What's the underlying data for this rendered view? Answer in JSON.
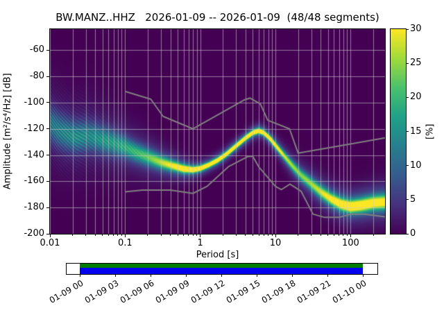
{
  "chart_data": {
    "type": "heatmap",
    "title": "BW.MANZ..HHZ   2026-01-09 -- 2026-01-09  (48/48 segments)",
    "xlabel": "Period [s]",
    "ylabel": "Amplitude [m²/s⁴/Hz] [dB]",
    "colorbar_label": "[%]",
    "x_scale": "log",
    "xlim": [
      0.01,
      287
    ],
    "ylim": [
      -200,
      -44
    ],
    "clim": [
      0,
      30
    ],
    "grid": true,
    "x_ticks": [
      "0.01",
      "0.1",
      "1",
      "10",
      "100"
    ],
    "y_ticks": [
      "-60",
      "-80",
      "-100",
      "-120",
      "-140",
      "-160",
      "-180",
      "-200"
    ],
    "colorbar_ticks": [
      "0",
      "5",
      "10",
      "15",
      "20",
      "25",
      "30"
    ],
    "ppsd_mode": {
      "periods": [
        0.01,
        0.013,
        0.017,
        0.022,
        0.03,
        0.04,
        0.055,
        0.075,
        0.1,
        0.14,
        0.2,
        0.3,
        0.42,
        0.6,
        0.8,
        1.0,
        1.3,
        1.7,
        2.2,
        3.0,
        4.0,
        5.0,
        6.0,
        7.0,
        8.5,
        10,
        13,
        17,
        22,
        30,
        40,
        55,
        75,
        100,
        140,
        200,
        287
      ],
      "db": [
        -116,
        -121,
        -124,
        -126,
        -125.5,
        -126.5,
        -129,
        -131.5,
        -134,
        -138,
        -141.5,
        -145.5,
        -148,
        -150.5,
        -151.2,
        -150.2,
        -147.5,
        -144,
        -139.5,
        -133,
        -127,
        -123,
        -121.5,
        -123,
        -127.5,
        -132.5,
        -140.5,
        -148.5,
        -155.5,
        -162,
        -168,
        -173.5,
        -177.5,
        -179.3,
        -178.3,
        -176.5,
        -175.8
      ],
      "intensity_pct": [
        13,
        14,
        15,
        15,
        14,
        14,
        15,
        15,
        16,
        17,
        18,
        21,
        24,
        29,
        30,
        30,
        30,
        30,
        30,
        30,
        30,
        30,
        30,
        30,
        30,
        27,
        22,
        20,
        19,
        20,
        22,
        25,
        28,
        30,
        29,
        27,
        26
      ],
      "spread_db": [
        9,
        8.5,
        8,
        7.5,
        7.5,
        7,
        6.5,
        6,
        5.2,
        4.6,
        4.2,
        3.4,
        2.8,
        2.2,
        1.8,
        1.6,
        1.5,
        1.5,
        1.5,
        1.5,
        1.5,
        1.5,
        1.5,
        1.5,
        1.6,
        1.8,
        2.2,
        2.6,
        3.0,
        3.2,
        3.4,
        3.4,
        3.4,
        3.4,
        3.6,
        3.8,
        4.0
      ]
    },
    "noise_models": {
      "nhnm": {
        "periods": [
          0.1,
          0.22,
          0.32,
          0.8,
          3.8,
          4.6,
          6.3,
          7.9,
          15.4,
          20,
          100,
          287
        ],
        "db": [
          -91.5,
          -97.4,
          -110.5,
          -120.0,
          -98.1,
          -96.5,
          -101.0,
          -113.5,
          -120.0,
          -138.5,
          -131.5,
          -126.9
        ]
      },
      "nlnm": {
        "periods": [
          0.1,
          0.17,
          0.4,
          0.8,
          1.24,
          2.4,
          4.3,
          5.0,
          6.0,
          10.0,
          12.0,
          15.6,
          21.9,
          31.6,
          45.0,
          70.0,
          101.0,
          154.0,
          287
        ],
        "db": [
          -168.0,
          -166.7,
          -166.7,
          -169.2,
          -163.7,
          -148.6,
          -141.1,
          -141.1,
          -149.0,
          -163.8,
          -166.3,
          -162.1,
          -167.5,
          -185.0,
          -187.5,
          -187.5,
          -185.0,
          -185.0,
          -187.0
        ]
      }
    },
    "timeline": {
      "tick_labels": [
        "01-09 00",
        "01-09 03",
        "01-09 06",
        "01-09 09",
        "01-09 12",
        "01-09 15",
        "01-09 18",
        "01-09 21",
        "01-10 00"
      ],
      "data_segments": [
        {
          "start": 0,
          "end": 1
        }
      ]
    }
  },
  "colors": {
    "plot_background": "#440154",
    "viridis_stops": [
      "#440154",
      "#46327e",
      "#365c8d",
      "#277f8e",
      "#1fa187",
      "#4ac16d",
      "#a0da39",
      "#fde725"
    ],
    "noise_model_line": "#808080",
    "grid_line": "#cccccc",
    "timeline_green": "#007c00",
    "timeline_blue": "#0000ee"
  }
}
